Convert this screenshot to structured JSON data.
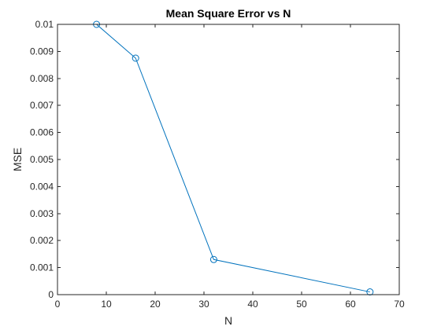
{
  "chart_data": {
    "type": "line",
    "title": "Mean Square Error vs N",
    "xlabel": "N",
    "ylabel": "MSE",
    "xlim": [
      0,
      70
    ],
    "ylim": [
      0,
      0.01
    ],
    "xticks": [
      "0",
      "10",
      "20",
      "30",
      "40",
      "50",
      "60",
      "70"
    ],
    "yticks": [
      "0",
      "0.001",
      "0.002",
      "0.003",
      "0.004",
      "0.005",
      "0.006",
      "0.007",
      "0.008",
      "0.009",
      "0.01"
    ],
    "grid": false,
    "series": [
      {
        "name": "MSE",
        "marker": "circle",
        "color": "#0072BD",
        "x": [
          8,
          16,
          32,
          64
        ],
        "y": [
          0.01,
          0.00875,
          0.0013,
          0.0001
        ]
      }
    ]
  }
}
